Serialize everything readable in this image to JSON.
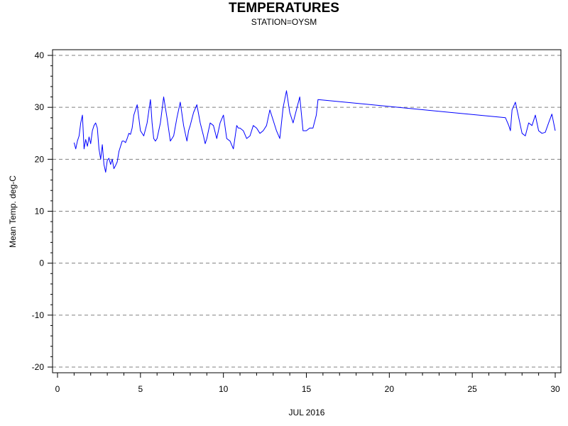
{
  "chart_data": {
    "type": "line",
    "title": "TEMPERATURES",
    "subtitle": "STATION=OYSM",
    "xlabel": "JUL 2016",
    "ylabel": "Mean Temp. deg-C",
    "xlim": [
      0,
      30
    ],
    "ylim": [
      -20,
      40
    ],
    "xticks": [
      0,
      5,
      10,
      15,
      20,
      25,
      30
    ],
    "yticks": [
      -20,
      -10,
      0,
      10,
      20,
      30,
      40
    ],
    "grid": "horizontal-dashed",
    "line_color": "#0000ff",
    "series": [
      {
        "x": [
          1.0,
          1.1,
          1.2,
          1.3,
          1.4,
          1.5,
          1.6,
          1.7,
          1.8,
          1.9,
          2.0,
          2.1,
          2.2,
          2.3,
          2.4,
          2.5,
          2.6,
          2.7,
          2.8,
          2.9,
          3.0,
          3.1,
          3.2,
          3.3,
          3.4,
          3.5,
          3.6,
          3.7,
          3.8,
          3.9,
          4.0,
          4.1,
          4.2,
          4.3,
          4.4,
          4.5,
          4.6,
          4.8,
          5.0,
          5.2,
          5.4,
          5.6,
          5.7,
          5.8,
          5.9,
          6.0,
          6.2,
          6.4,
          6.6,
          6.8,
          6.9,
          7.0,
          7.2,
          7.4,
          7.6,
          7.8,
          7.9,
          8.0,
          8.2,
          8.4,
          8.6,
          8.8,
          8.9,
          9.0,
          9.1,
          9.2,
          9.4,
          9.6,
          9.8,
          10.0,
          10.2,
          10.4,
          10.6,
          10.8,
          10.9,
          11.0,
          11.2,
          11.4,
          11.6,
          11.8,
          12.0,
          12.2,
          12.4,
          12.6,
          12.8,
          13.0,
          13.2,
          13.4,
          13.6,
          13.8,
          14.0,
          14.2,
          14.4,
          14.6,
          14.8,
          15.0,
          15.2,
          15.4,
          15.6,
          15.7,
          27.0,
          27.2,
          27.3,
          27.4,
          27.6,
          27.8,
          28.0,
          28.2,
          28.4,
          28.6,
          28.8,
          29.0,
          29.2,
          29.4,
          29.6,
          29.8,
          30.0
        ],
        "y": [
          23.2,
          22.0,
          23.5,
          24.5,
          27.0,
          28.5,
          22.0,
          23.8,
          22.5,
          24.3,
          23.0,
          25.5,
          26.5,
          27.0,
          26.0,
          22.0,
          20.0,
          22.8,
          19.0,
          17.5,
          19.8,
          20.2,
          19.0,
          20.0,
          18.2,
          18.8,
          19.5,
          21.5,
          22.5,
          23.5,
          23.5,
          23.2,
          24.0,
          25.0,
          24.8,
          26.0,
          28.5,
          30.5,
          25.5,
          24.5,
          27.0,
          31.5,
          27.0,
          24.0,
          23.5,
          24.0,
          27.0,
          32.0,
          28.0,
          23.5,
          24.0,
          24.5,
          28.0,
          31.0,
          26.5,
          23.5,
          25.5,
          26.5,
          29.0,
          30.5,
          27.0,
          24.5,
          23.0,
          24.0,
          25.5,
          27.0,
          26.5,
          24.0,
          27.0,
          28.5,
          24.0,
          23.5,
          22.0,
          26.5,
          26.0,
          26.0,
          25.5,
          24.0,
          24.5,
          26.5,
          26.0,
          25.0,
          25.5,
          26.5,
          29.5,
          27.5,
          25.5,
          24.0,
          30.0,
          33.2,
          29.0,
          27.0,
          29.5,
          32.0,
          25.5,
          25.5,
          26.0,
          26.0,
          28.5,
          31.5,
          28.0,
          26.5,
          25.5,
          29.5,
          31.0,
          28.0,
          25.0,
          24.5,
          27.0,
          26.5,
          28.5,
          25.5,
          25.0,
          25.2,
          27.0,
          28.7,
          25.5
        ]
      }
    ]
  }
}
